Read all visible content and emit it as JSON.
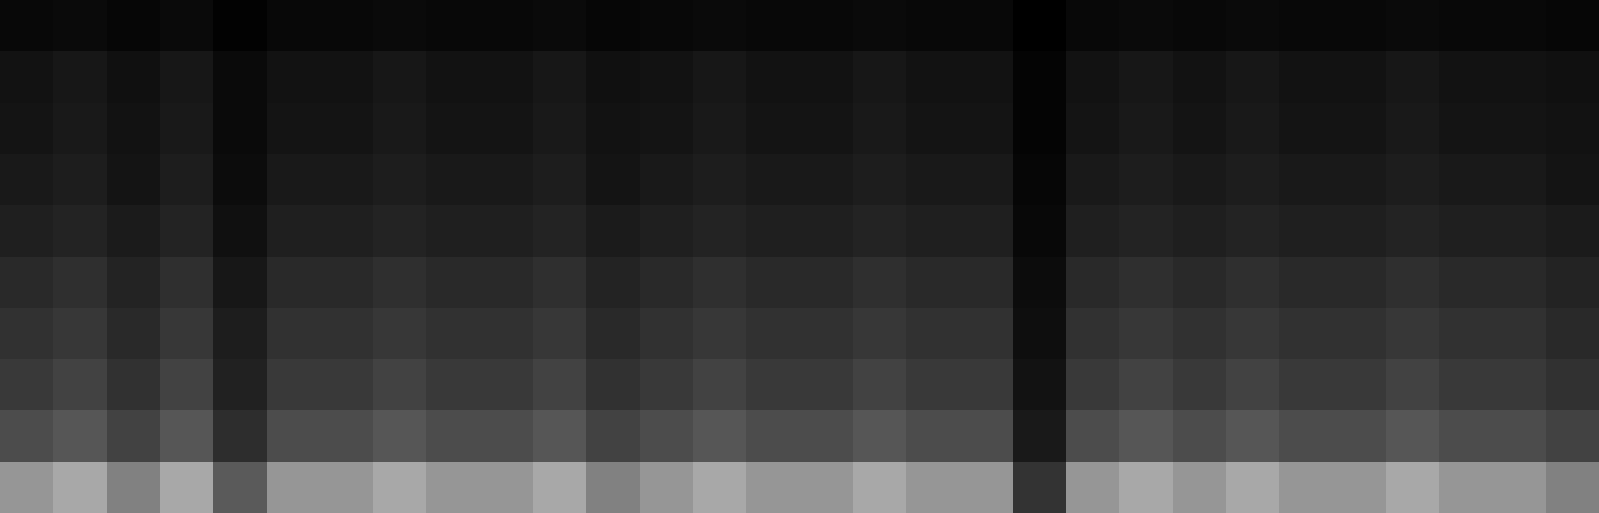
{
  "chart_data": {
    "type": "heatmap",
    "tick_labels": false,
    "grid": false,
    "values": [
      [
        76,
        85,
        66,
        85,
        47,
        76,
        76,
        85,
        76,
        76,
        85,
        66,
        76,
        85,
        76,
        76,
        85,
        76,
        76,
        28,
        76,
        85,
        76,
        85,
        76,
        76,
        85,
        76,
        76,
        66
      ],
      [
        40,
        45,
        35,
        45,
        25,
        40,
        40,
        45,
        40,
        40,
        45,
        35,
        40,
        45,
        40,
        40,
        45,
        40,
        40,
        15,
        40,
        45,
        40,
        45,
        40,
        40,
        45,
        40,
        40,
        35
      ],
      [
        31,
        35,
        27,
        35,
        19,
        31,
        31,
        35,
        31,
        31,
        35,
        27,
        31,
        35,
        31,
        31,
        35,
        31,
        31,
        12,
        31,
        35,
        31,
        35,
        31,
        31,
        35,
        31,
        31,
        27
      ],
      [
        27,
        30,
        23,
        30,
        17,
        27,
        27,
        30,
        27,
        27,
        30,
        23,
        27,
        30,
        27,
        27,
        30,
        27,
        27,
        10,
        27,
        30,
        27,
        30,
        27,
        27,
        30,
        27,
        27,
        23
      ],
      [
        23,
        26,
        20,
        26,
        14,
        23,
        23,
        26,
        23,
        23,
        26,
        20,
        23,
        26,
        23,
        23,
        26,
        23,
        23,
        9,
        23,
        26,
        23,
        26,
        23,
        23,
        26,
        23,
        23,
        20
      ],
      [
        18,
        20,
        16,
        20,
        11,
        18,
        18,
        20,
        18,
        18,
        20,
        16,
        18,
        20,
        18,
        18,
        20,
        18,
        18,
        7,
        18,
        20,
        18,
        20,
        18,
        18,
        20,
        18,
        18,
        16
      ],
      [
        15,
        17,
        13,
        17,
        9,
        15,
        15,
        17,
        15,
        15,
        17,
        13,
        15,
        17,
        15,
        15,
        17,
        15,
        15,
        6,
        15,
        17,
        15,
        17,
        15,
        15,
        17,
        15,
        15,
        13
      ],
      [
        13,
        15,
        12,
        15,
        8,
        13,
        13,
        15,
        13,
        13,
        15,
        12,
        13,
        15,
        13,
        13,
        15,
        13,
        13,
        5,
        13,
        15,
        13,
        15,
        13,
        13,
        15,
        13,
        13,
        12
      ],
      [
        12,
        14,
        11,
        14,
        8,
        12,
        12,
        14,
        12,
        12,
        14,
        11,
        12,
        14,
        12,
        12,
        14,
        12,
        12,
        5,
        12,
        14,
        12,
        14,
        12,
        12,
        14,
        12,
        12,
        11
      ],
      [
        7,
        8,
        6,
        8,
        4,
        7,
        7,
        8,
        7,
        7,
        8,
        6,
        7,
        8,
        7,
        7,
        8,
        7,
        7,
        3,
        7,
        8,
        7,
        8,
        7,
        7,
        8,
        7,
        7,
        6
      ]
    ]
  }
}
